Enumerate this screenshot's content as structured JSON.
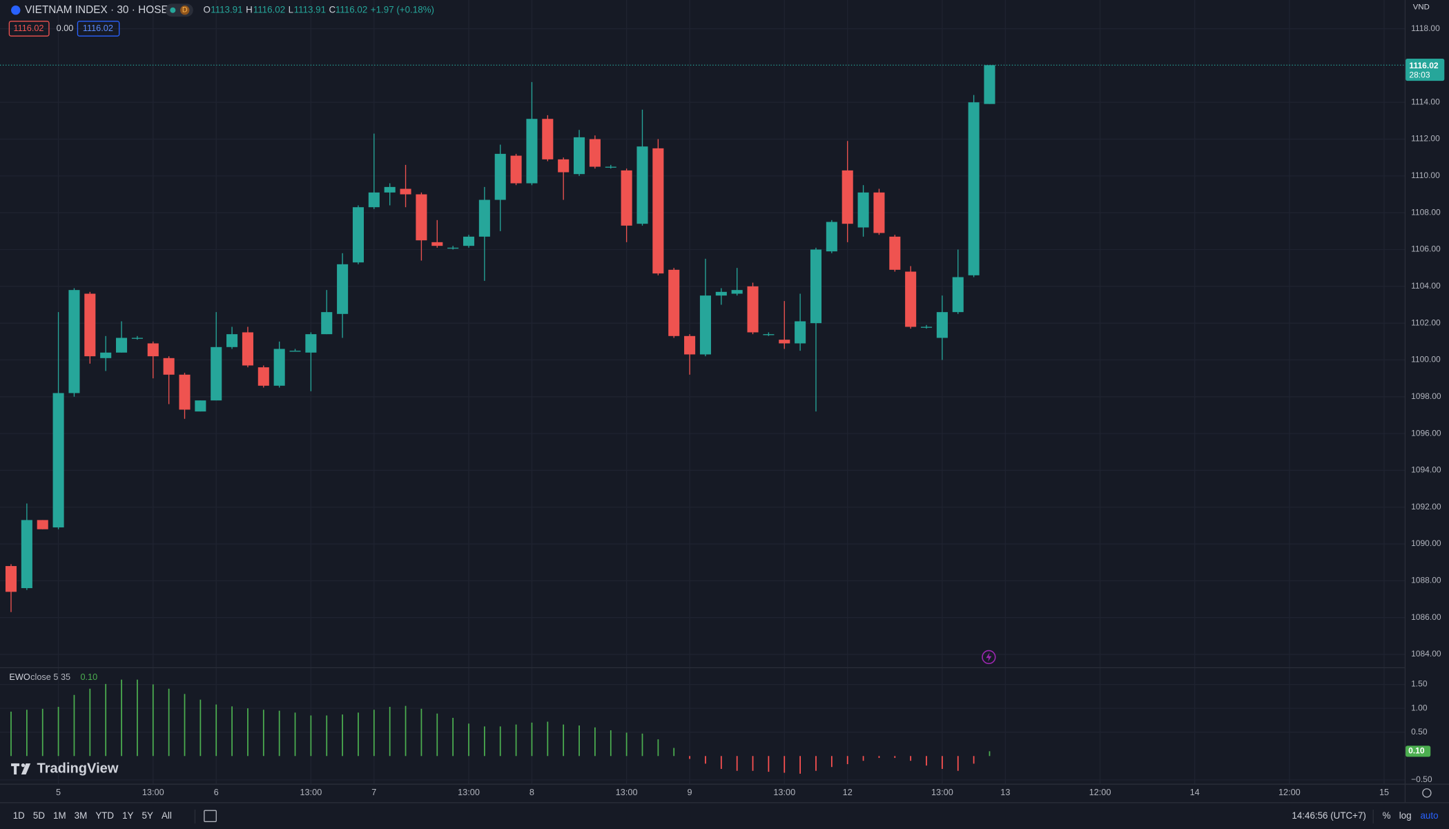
{
  "chart_data": [
    {
      "type": "candlestick",
      "title": "VIETNAM INDEX · 30 · HOSE",
      "open": [
        1088.8,
        1087.6,
        1091.3,
        1090.9,
        1098.2,
        1103.6,
        1100.1,
        1100.4,
        1101.2,
        1100.9,
        1100.1,
        1099.2,
        1097.2,
        1097.8,
        1100.7,
        1101.5,
        1099.6,
        1098.6,
        1100.5,
        1100.4,
        1101.4,
        1102.5,
        1105.3,
        1108.3,
        1109.1,
        1109.3,
        1109.0,
        1106.4,
        1106.1,
        1106.2,
        1106.7,
        1108.7,
        1111.1,
        1109.6,
        1113.1,
        1110.9,
        1110.1,
        1112.0,
        1110.5,
        1110.3,
        1107.4,
        1111.5,
        1104.9,
        1101.3,
        1100.3,
        1103.5,
        1103.6,
        1104.0,
        1101.4,
        1101.1,
        1100.9,
        1102.0,
        1105.9,
        1110.3,
        1107.2,
        1109.1,
        1106.7,
        1104.8,
        1101.8,
        1101.2,
        1102.6,
        1104.6,
        1113.91
      ],
      "high": [
        1088.9,
        1092.2,
        1091.3,
        1102.6,
        1103.9,
        1103.7,
        1101.3,
        1102.1,
        1101.3,
        1101.0,
        1100.2,
        1099.3,
        1097.8,
        1102.6,
        1101.8,
        1101.8,
        1099.7,
        1101.0,
        1100.6,
        1101.5,
        1103.8,
        1105.8,
        1108.4,
        1112.3,
        1109.6,
        1110.6,
        1109.1,
        1107.6,
        1106.2,
        1106.8,
        1109.4,
        1111.7,
        1111.2,
        1115.1,
        1113.3,
        1111.0,
        1112.5,
        1112.2,
        1110.6,
        1110.4,
        1113.6,
        1112.0,
        1105.0,
        1101.4,
        1105.5,
        1103.9,
        1105.0,
        1104.2,
        1101.5,
        1103.2,
        1103.6,
        1106.1,
        1107.6,
        1111.9,
        1109.5,
        1109.3,
        1106.8,
        1105.1,
        1101.9,
        1103.5,
        1106.0,
        1114.4,
        1116.02
      ],
      "low": [
        1086.3,
        1087.5,
        1090.8,
        1090.8,
        1098.0,
        1099.8,
        1099.4,
        1100.4,
        1101.1,
        1099.0,
        1097.6,
        1096.8,
        1097.2,
        1097.8,
        1100.6,
        1099.6,
        1098.5,
        1098.5,
        1100.5,
        1098.3,
        1101.4,
        1101.2,
        1105.2,
        1108.2,
        1108.4,
        1108.3,
        1105.4,
        1106.1,
        1106.0,
        1106.1,
        1104.3,
        1107.0,
        1109.5,
        1109.5,
        1110.8,
        1108.7,
        1110.0,
        1110.4,
        1110.4,
        1106.4,
        1107.3,
        1104.6,
        1101.2,
        1099.2,
        1100.2,
        1103.0,
        1103.5,
        1101.4,
        1101.3,
        1100.6,
        1100.5,
        1097.2,
        1105.8,
        1106.4,
        1106.7,
        1106.8,
        1104.8,
        1101.7,
        1101.7,
        1100.0,
        1102.5,
        1104.5,
        1113.91
      ],
      "close": [
        1087.4,
        1091.3,
        1090.8,
        1098.2,
        1103.8,
        1100.2,
        1100.4,
        1101.2,
        1101.2,
        1100.2,
        1099.2,
        1097.3,
        1097.8,
        1100.7,
        1101.4,
        1099.7,
        1098.6,
        1100.6,
        1100.5,
        1101.4,
        1102.6,
        1105.2,
        1108.3,
        1109.1,
        1109.4,
        1109.0,
        1106.5,
        1106.2,
        1106.1,
        1106.7,
        1108.7,
        1111.2,
        1109.6,
        1113.1,
        1110.9,
        1110.2,
        1112.1,
        1110.5,
        1110.5,
        1107.3,
        1111.6,
        1104.7,
        1101.3,
        1100.3,
        1103.5,
        1103.7,
        1103.8,
        1101.5,
        1101.4,
        1100.9,
        1102.1,
        1106.0,
        1107.5,
        1107.4,
        1109.1,
        1106.9,
        1104.9,
        1101.8,
        1101.8,
        1102.6,
        1104.5,
        1114.0,
        1116.02
      ],
      "up_color": "#26a69a",
      "down_color": "#ef5350",
      "xlim": [
        -0.7,
        88.3
      ],
      "xticks": [
        {
          "value": 3,
          "label": "5"
        },
        {
          "value": 9,
          "label": "13:00"
        },
        {
          "value": 13,
          "label": "6"
        },
        {
          "value": 19,
          "label": "13:00"
        },
        {
          "value": 23,
          "label": "7"
        },
        {
          "value": 29,
          "label": "13:00"
        },
        {
          "value": 33,
          "label": "8"
        },
        {
          "value": 39,
          "label": "13:00"
        },
        {
          "value": 43,
          "label": "9"
        },
        {
          "value": 49,
          "label": "13:00"
        },
        {
          "value": 53,
          "label": "12"
        },
        {
          "value": 59,
          "label": "13:00"
        },
        {
          "value": 63,
          "label": "13"
        },
        {
          "value": 69,
          "label": "12:00"
        },
        {
          "value": 75,
          "label": "14"
        },
        {
          "value": 81,
          "label": "12:00"
        },
        {
          "value": 87,
          "label": "15"
        }
      ],
      "ylim": [
        1083.3,
        1119.56
      ],
      "yticks": [
        {
          "value": 1084,
          "label": "1084.00"
        },
        {
          "value": 1086,
          "label": "1086.00"
        },
        {
          "value": 1088,
          "label": "1088.00"
        },
        {
          "value": 1090,
          "label": "1090.00"
        },
        {
          "value": 1092,
          "label": "1092.00"
        },
        {
          "value": 1094,
          "label": "1094.00"
        },
        {
          "value": 1096,
          "label": "1096.00"
        },
        {
          "value": 1098,
          "label": "1098.00"
        },
        {
          "value": 1100,
          "label": "1100.00"
        },
        {
          "value": 1102,
          "label": "1102.00"
        },
        {
          "value": 1104,
          "label": "1104.00"
        },
        {
          "value": 1106,
          "label": "1106.00"
        },
        {
          "value": 1108,
          "label": "1108.00"
        },
        {
          "value": 1110,
          "label": "1110.00"
        },
        {
          "value": 1112,
          "label": "1112.00"
        },
        {
          "value": 1114,
          "label": "1114.00"
        },
        {
          "value": 1118,
          "label": "1118.00"
        }
      ],
      "grid": true
    },
    {
      "type": "bar",
      "title": "EWO",
      "subtitle": "close 5 35",
      "values": [
        0.93,
        0.97,
        0.99,
        1.03,
        1.28,
        1.41,
        1.51,
        1.6,
        1.6,
        1.5,
        1.41,
        1.3,
        1.18,
        1.08,
        1.04,
        1.0,
        0.97,
        0.95,
        0.91,
        0.85,
        0.85,
        0.87,
        0.91,
        0.97,
        1.03,
        1.05,
        0.99,
        0.89,
        0.8,
        0.68,
        0.62,
        0.62,
        0.66,
        0.7,
        0.72,
        0.66,
        0.64,
        0.6,
        0.54,
        0.49,
        0.47,
        0.35,
        0.17,
        -0.06,
        -0.16,
        -0.27,
        -0.31,
        -0.31,
        -0.33,
        -0.35,
        -0.37,
        -0.31,
        -0.23,
        -0.17,
        -0.1,
        -0.04,
        -0.04,
        -0.1,
        -0.2,
        -0.27,
        -0.31,
        -0.16,
        0.1
      ],
      "last_value_label": "0.10",
      "up_color": "#4caf50",
      "down_color": "#ff5252",
      "ylim": [
        -0.58,
        1.84
      ],
      "yticks": [
        {
          "value": -0.5,
          "label": "−0.50"
        },
        {
          "value": 0.5,
          "label": "0.50"
        },
        {
          "value": 1,
          "label": "1.00"
        },
        {
          "value": 1.5,
          "label": "1.50"
        }
      ]
    }
  ],
  "ui": {
    "interval_badge": "D",
    "o": "O",
    "h": "H",
    "l": "L",
    "c": "C",
    "change": "+1.97 (+0.18%)",
    "price_boxes": [
      "1116.02",
      "0.00",
      "1116.02"
    ],
    "currency": "VND",
    "countdown": "28:03",
    "brand": "TradingView",
    "timeframes": [
      "1D",
      "5D",
      "1M",
      "3M",
      "YTD",
      "1Y",
      "5Y",
      "All"
    ],
    "clock": "14:46:56 (UTC+7)",
    "scale_buttons": [
      "%",
      "log",
      "auto"
    ]
  }
}
